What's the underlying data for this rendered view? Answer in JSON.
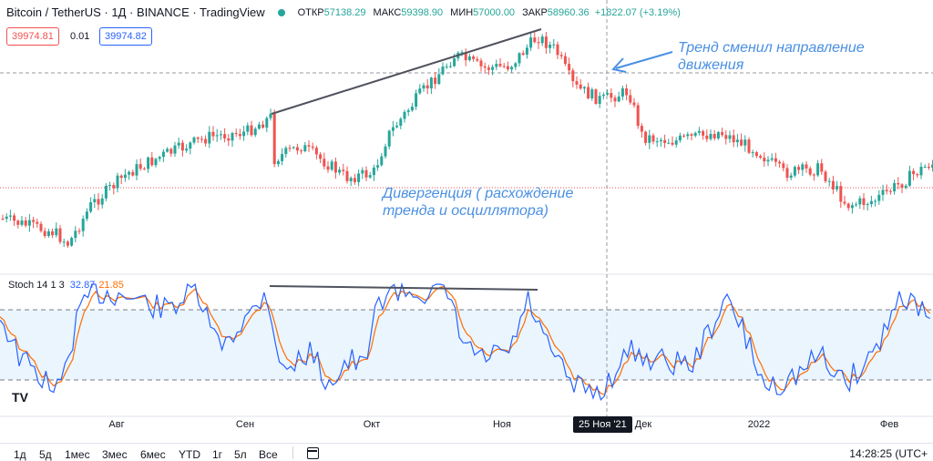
{
  "header": {
    "symbol": "Bitcoin / TetherUS · 1Д · BINANCE · TradingView",
    "open_label": "ОТКР",
    "open": "57138.29",
    "high_label": "МАКС",
    "high": "59398.90",
    "low_label": "МИН",
    "low": "57000.00",
    "close_label": "ЗАКР",
    "close": "58960.36",
    "change": "+1822.07 (+3.19%)"
  },
  "quote": {
    "bid": "39974.81",
    "spread": "0.01",
    "ask": "39974.82"
  },
  "annotations": {
    "trend_line1": "Тренд сменил направление",
    "trend_line2": "движения",
    "div_line1": "Дивергенция ( расхождение",
    "div_line2": "тренда и осциллятора)"
  },
  "stoch": {
    "label": "Stoch 14 1 3",
    "k": "32.87",
    "d": "21.85"
  },
  "xaxis": {
    "aug": "Авг",
    "sep": "Сен",
    "oct": "Окт",
    "nov": "Ноя",
    "dec": "Дек",
    "y2022": "2022",
    "feb": "Фев"
  },
  "crosshair_date": "25 Ноя '21",
  "timeframes": [
    "1д",
    "5д",
    "1мес",
    "3мес",
    "6мес",
    "YTD",
    "1г",
    "5л",
    "Все"
  ],
  "clock": "14:28:25 (UTC+",
  "colors": {
    "up": "#26a69a",
    "down": "#ef5350",
    "k": "#2962ff",
    "d": "#ff6d00",
    "annotation": "#4a90e2",
    "band": "#e3f2fd"
  },
  "chart_data": {
    "type": "candlestick",
    "title": "Bitcoin / TetherUS · 1Д · BINANCE",
    "x_range": [
      "2021-07",
      "2022-02"
    ],
    "y_range_approx": [
      29000,
      69000
    ],
    "last_ohlc": {
      "open": 57138.29,
      "high": 59398.9,
      "low": 57000.0,
      "close": 58960.36
    },
    "indicator": {
      "name": "Stoch",
      "params": [
        14,
        1,
        3
      ],
      "k": 32.87,
      "d": 21.85,
      "bands": [
        20,
        80
      ]
    },
    "drawings": [
      {
        "type": "trendline",
        "pane": "price",
        "desc": "rising highs into Nov"
      },
      {
        "type": "trendline",
        "pane": "stoch",
        "desc": "flat / falling oscillator highs"
      }
    ]
  }
}
